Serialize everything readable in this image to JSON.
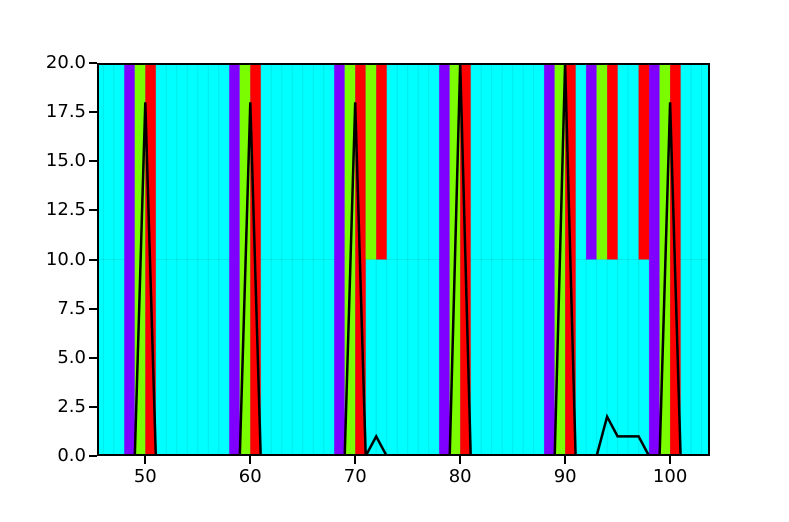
{
  "chart_data": {
    "type": "bar",
    "title": "",
    "xlabel": "",
    "ylabel": "",
    "legend": false,
    "grid": false,
    "xlim": [
      45.4,
      103.8
    ],
    "ylim": [
      0,
      20
    ],
    "x_ticks": [
      50,
      60,
      70,
      80,
      90,
      100
    ],
    "x_tick_labels": [
      "50",
      "60",
      "70",
      "80",
      "90",
      "100"
    ],
    "y_ticks": [
      0,
      2.5,
      5,
      7.5,
      10,
      12.5,
      15,
      17.5,
      20
    ],
    "y_tick_labels": [
      "0.0",
      "2.5",
      "5.0",
      "7.5",
      "10.0",
      "12.5",
      "15.0",
      "17.5",
      "20.0"
    ],
    "colors": {
      "background": "#00FFFF",
      "purple": "#7F00FF",
      "green": "#7CFC00",
      "red": "#FF0000",
      "line": "#000000",
      "spine": "#000000",
      "seam": "rgba(0,80,80,0.12)"
    },
    "bar_width": 1,
    "background_bars": {
      "note": "cyan bars height 20 at every integer x from 46 to 103",
      "height": 20
    },
    "full_bars": [
      {
        "x": 48,
        "color": "purple",
        "height": 20
      },
      {
        "x": 49,
        "color": "green",
        "height": 20
      },
      {
        "x": 50,
        "color": "red",
        "height": 20
      },
      {
        "x": 58,
        "color": "purple",
        "height": 20
      },
      {
        "x": 59,
        "color": "green",
        "height": 20
      },
      {
        "x": 60,
        "color": "red",
        "height": 20
      },
      {
        "x": 68,
        "color": "purple",
        "height": 20
      },
      {
        "x": 69,
        "color": "green",
        "height": 20
      },
      {
        "x": 70,
        "color": "red",
        "height": 20
      },
      {
        "x": 78,
        "color": "purple",
        "height": 20
      },
      {
        "x": 79,
        "color": "green",
        "height": 20
      },
      {
        "x": 80,
        "color": "red",
        "height": 20
      },
      {
        "x": 88,
        "color": "purple",
        "height": 20
      },
      {
        "x": 89,
        "color": "green",
        "height": 20
      },
      {
        "x": 90,
        "color": "red",
        "height": 20
      },
      {
        "x": 98,
        "color": "purple",
        "height": 20
      },
      {
        "x": 99,
        "color": "green",
        "height": 20
      },
      {
        "x": 100,
        "color": "red",
        "height": 20
      }
    ],
    "half_bars": [
      {
        "x": 71,
        "color": "green",
        "bottom": 10,
        "top": 20
      },
      {
        "x": 72,
        "color": "red",
        "bottom": 10,
        "top": 20
      },
      {
        "x": 92,
        "color": "purple",
        "bottom": 10,
        "top": 20
      },
      {
        "x": 93,
        "color": "green",
        "bottom": 10,
        "top": 20
      },
      {
        "x": 94,
        "color": "red",
        "bottom": 10,
        "top": 20
      },
      {
        "x": 97,
        "color": "red",
        "bottom": 10,
        "top": 20
      }
    ],
    "line": {
      "name": "black-spike-line",
      "stroke_width": 2.5,
      "points": [
        [
          45.4,
          0
        ],
        [
          49,
          0
        ],
        [
          50,
          18
        ],
        [
          51,
          0
        ],
        [
          59,
          0
        ],
        [
          60,
          18
        ],
        [
          61,
          0
        ],
        [
          69,
          0
        ],
        [
          70,
          18
        ],
        [
          71,
          0
        ],
        [
          72,
          1
        ],
        [
          73,
          0
        ],
        [
          79,
          0
        ],
        [
          80,
          20
        ],
        [
          81,
          0
        ],
        [
          89,
          0
        ],
        [
          90,
          20
        ],
        [
          91,
          0
        ],
        [
          93,
          0
        ],
        [
          94,
          2
        ],
        [
          95,
          1
        ],
        [
          96,
          1
        ],
        [
          97,
          1
        ],
        [
          98,
          0
        ],
        [
          99,
          0
        ],
        [
          100,
          18
        ],
        [
          101,
          0
        ],
        [
          103.8,
          0
        ]
      ]
    }
  }
}
